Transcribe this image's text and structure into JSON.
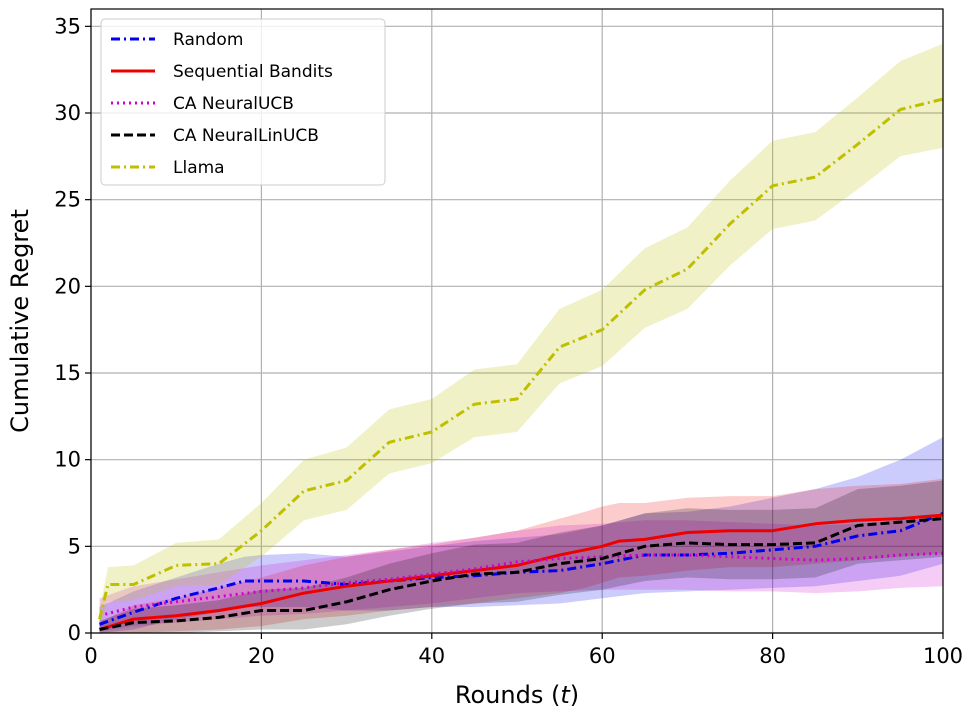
{
  "chart_data": {
    "type": "line",
    "xlabel": "Rounds (",
    "xlabel_var": "t",
    "xlabel_close": ")",
    "ylabel": "Cumulative Regret",
    "xlim": [
      0,
      100
    ],
    "ylim": [
      0,
      36
    ],
    "xticks": [
      0,
      20,
      40,
      60,
      80,
      100
    ],
    "yticks": [
      0,
      5,
      10,
      15,
      20,
      25,
      30,
      35
    ],
    "grid": true,
    "legend_position": "top-left",
    "series": [
      {
        "name": "Random",
        "color": "#0000ee",
        "dash": "dashdot",
        "x": [
          1,
          5,
          10,
          15,
          18,
          20,
          25,
          30,
          35,
          40,
          45,
          50,
          55,
          60,
          65,
          70,
          75,
          80,
          85,
          90,
          95,
          100
        ],
        "y": [
          0.5,
          1.2,
          2.0,
          2.6,
          3.0,
          3.0,
          3.0,
          2.8,
          3.0,
          3.2,
          3.3,
          3.5,
          3.6,
          4.0,
          4.5,
          4.5,
          4.6,
          4.8,
          5.0,
          5.6,
          5.9,
          6.9
        ],
        "band_low": [
          0.0,
          0.2,
          0.8,
          1.2,
          1.5,
          1.5,
          1.5,
          1.3,
          1.3,
          1.5,
          1.5,
          1.6,
          1.7,
          2.0,
          2.3,
          2.4,
          2.5,
          2.6,
          2.7,
          3.0,
          3.3,
          4.0
        ],
        "band_high": [
          1.5,
          2.4,
          3.2,
          4.0,
          4.4,
          4.5,
          4.6,
          4.4,
          4.7,
          5.0,
          5.3,
          5.5,
          5.7,
          6.2,
          6.9,
          7.0,
          7.3,
          7.8,
          8.3,
          9.0,
          10.0,
          11.3
        ]
      },
      {
        "name": "Sequential Bandits",
        "color": "#ee0000",
        "dash": "solid",
        "x": [
          1,
          5,
          10,
          15,
          20,
          25,
          30,
          35,
          40,
          45,
          50,
          55,
          58,
          60,
          62,
          65,
          70,
          75,
          80,
          85,
          90,
          95,
          100
        ],
        "y": [
          0.2,
          0.8,
          1.0,
          1.3,
          1.7,
          2.3,
          2.7,
          3.0,
          3.3,
          3.6,
          3.9,
          4.5,
          4.8,
          5.0,
          5.3,
          5.4,
          5.8,
          5.9,
          5.9,
          6.3,
          6.5,
          6.6,
          6.8
        ],
        "band_low": [
          0.0,
          0.0,
          0.1,
          0.2,
          0.4,
          0.8,
          1.0,
          1.3,
          1.5,
          1.7,
          2.0,
          2.3,
          2.6,
          2.9,
          3.2,
          3.3,
          3.6,
          3.8,
          3.8,
          4.0,
          4.2,
          4.4,
          4.6
        ],
        "band_high": [
          0.6,
          1.6,
          2.0,
          2.6,
          3.2,
          3.9,
          4.4,
          4.8,
          5.1,
          5.5,
          5.9,
          6.6,
          7.0,
          7.3,
          7.5,
          7.5,
          7.8,
          7.9,
          7.9,
          8.3,
          8.5,
          8.6,
          8.9
        ]
      },
      {
        "name": "CA NeuralUCB",
        "color": "#cc00cc",
        "dash": "dotted",
        "x": [
          1,
          5,
          10,
          15,
          20,
          25,
          30,
          35,
          40,
          45,
          50,
          55,
          60,
          65,
          70,
          75,
          80,
          85,
          90,
          95,
          100
        ],
        "y": [
          1.0,
          1.5,
          1.8,
          2.1,
          2.4,
          2.6,
          2.9,
          3.1,
          3.4,
          3.7,
          4.1,
          4.3,
          4.4,
          4.5,
          4.5,
          4.4,
          4.3,
          4.2,
          4.3,
          4.5,
          4.6
        ],
        "band_low": [
          0.1,
          0.4,
          0.6,
          0.8,
          1.0,
          1.1,
          1.3,
          1.5,
          1.7,
          2.0,
          2.3,
          2.4,
          2.5,
          2.5,
          2.5,
          2.4,
          2.4,
          2.3,
          2.4,
          2.6,
          2.7
        ],
        "band_high": [
          2.0,
          2.7,
          3.1,
          3.5,
          3.9,
          4.2,
          4.5,
          4.8,
          5.2,
          5.5,
          5.9,
          6.2,
          6.3,
          6.5,
          6.5,
          6.4,
          6.3,
          6.2,
          6.3,
          6.5,
          6.6
        ]
      },
      {
        "name": "CA NeuralLinUCB",
        "color": "#000000",
        "dash": "dashed",
        "x": [
          1,
          5,
          10,
          15,
          20,
          25,
          30,
          35,
          40,
          45,
          50,
          55,
          60,
          65,
          70,
          75,
          80,
          85,
          90,
          95,
          100
        ],
        "y": [
          0.2,
          0.6,
          0.7,
          0.9,
          1.3,
          1.3,
          1.8,
          2.5,
          3.0,
          3.4,
          3.5,
          4.0,
          4.3,
          5.0,
          5.2,
          5.1,
          5.1,
          5.2,
          6.2,
          6.4,
          6.6
        ],
        "band_low": [
          0.0,
          0.0,
          0.0,
          0.1,
          0.2,
          0.2,
          0.5,
          1.0,
          1.4,
          1.7,
          1.8,
          2.2,
          2.5,
          3.0,
          3.2,
          3.1,
          3.1,
          3.2,
          4.0,
          4.2,
          4.4
        ],
        "band_high": [
          0.7,
          1.4,
          1.6,
          1.9,
          2.5,
          2.6,
          3.2,
          4.0,
          4.6,
          5.1,
          5.2,
          5.8,
          6.2,
          6.9,
          7.2,
          7.1,
          7.1,
          7.2,
          8.3,
          8.5,
          8.8
        ]
      },
      {
        "name": "Llama",
        "color": "#bfbf00",
        "dash": "dashdot",
        "x": [
          1,
          2,
          5,
          10,
          15,
          20,
          25,
          30,
          35,
          40,
          45,
          50,
          55,
          60,
          65,
          70,
          75,
          80,
          85,
          90,
          95,
          100
        ],
        "y": [
          0.8,
          2.8,
          2.8,
          3.9,
          4.0,
          5.9,
          8.2,
          8.8,
          11.0,
          11.6,
          13.2,
          13.5,
          16.5,
          17.5,
          19.8,
          21.0,
          23.6,
          25.8,
          26.3,
          28.2,
          30.2,
          30.8
        ],
        "band_low": [
          0.3,
          1.8,
          1.9,
          2.7,
          2.8,
          4.4,
          6.5,
          7.1,
          9.2,
          9.8,
          11.3,
          11.6,
          14.4,
          15.4,
          17.6,
          18.7,
          21.2,
          23.3,
          23.8,
          25.6,
          27.5,
          28.0
        ],
        "band_high": [
          1.4,
          3.8,
          3.9,
          5.2,
          5.4,
          7.5,
          10.0,
          10.7,
          12.9,
          13.5,
          15.2,
          15.5,
          18.7,
          19.8,
          22.2,
          23.4,
          26.1,
          28.4,
          28.9,
          30.9,
          33.0,
          34.0
        ]
      }
    ]
  }
}
